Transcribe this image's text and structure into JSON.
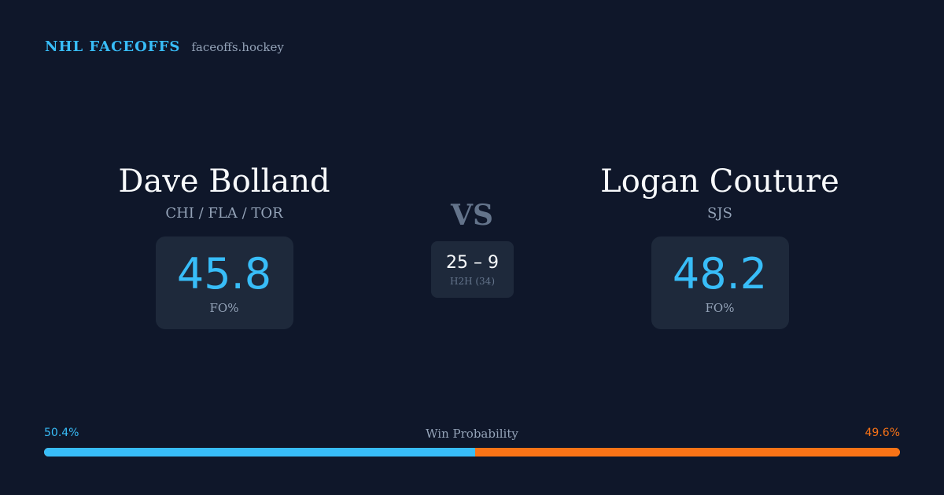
{
  "brand": {
    "title": "NHL FACEOFFS",
    "site": "faceoffs.hockey"
  },
  "player_left": {
    "name": "Dave Bolland",
    "teams": "CHI / FLA / TOR",
    "fo_pct": "45.8",
    "fo_label": "FO%"
  },
  "player_right": {
    "name": "Logan Couture",
    "teams": "SJS",
    "fo_pct": "48.2",
    "fo_label": "FO%"
  },
  "versus": {
    "label": "VS",
    "h2h_score": "25 – 9",
    "h2h_label": "H2H (34)"
  },
  "win_probability": {
    "label": "Win Probability",
    "left_text": "50.4%",
    "right_text": "49.6%",
    "left_fraction": 0.504,
    "right_fraction": 0.496
  },
  "colors": {
    "background": "#0f172a",
    "card": "#1e293b",
    "accent_left": "#38bdf8",
    "accent_right": "#f97316",
    "muted": "#94a3b8"
  }
}
